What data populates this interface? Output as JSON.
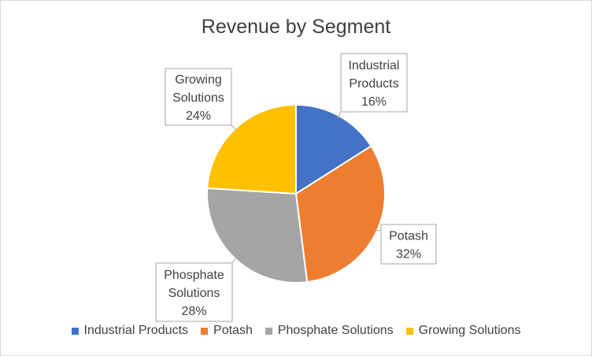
{
  "chart_data": {
    "type": "pie",
    "title": "Revenue by Segment",
    "categories": [
      "Industrial Products",
      "Potash",
      "Phosphate Solutions",
      "Growing Solutions"
    ],
    "values": [
      16,
      32,
      28,
      24
    ],
    "labels": [
      [
        "Industrial",
        "Products",
        "16%"
      ],
      [
        "Potash",
        "32%"
      ],
      [
        "Phosphate",
        "Solutions",
        "28%"
      ],
      [
        "Growing",
        "Solutions",
        "24%"
      ]
    ],
    "colors": [
      "#4472c4",
      "#ed7d31",
      "#a5a5a5",
      "#ffc000"
    ],
    "legend_position": "bottom"
  }
}
